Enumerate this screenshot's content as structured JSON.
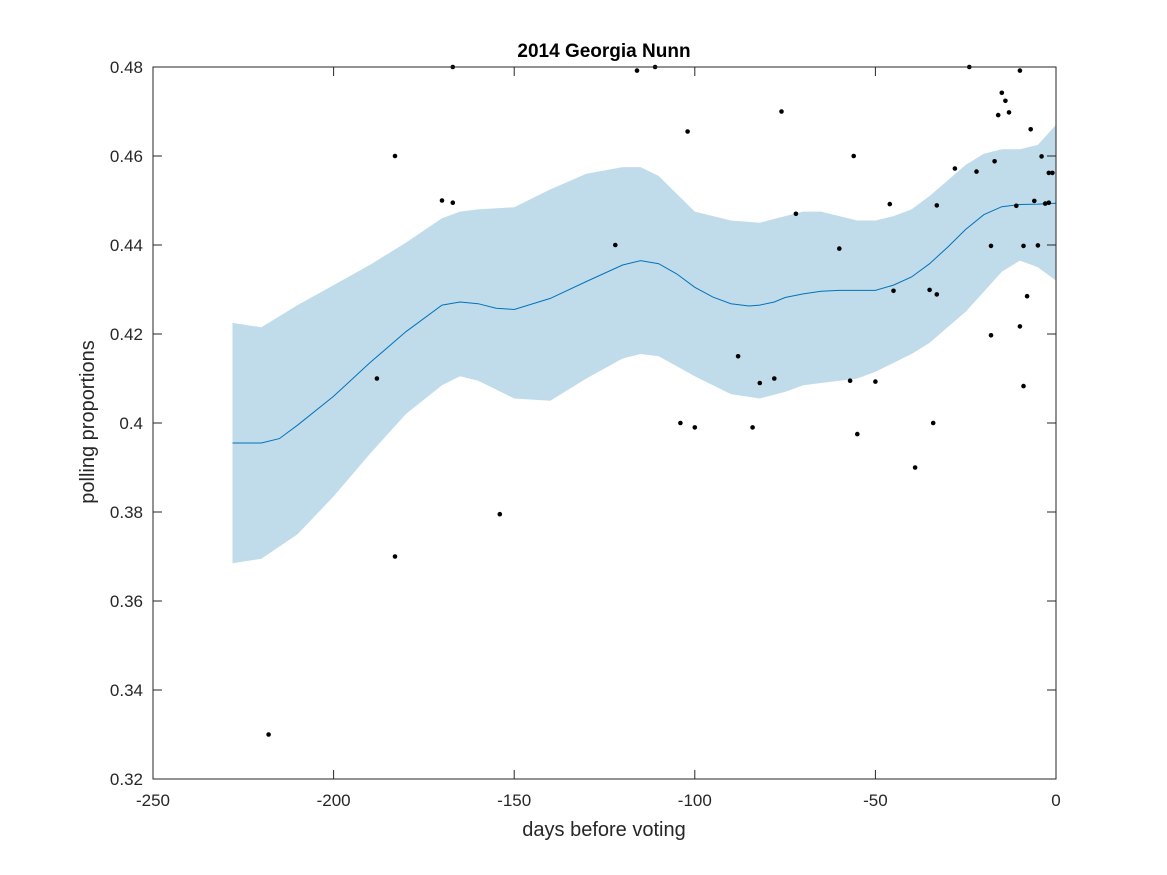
{
  "chart_data": {
    "type": "scatter",
    "title": "2014 Georgia Nunn",
    "xlabel": "days before voting",
    "ylabel": "polling proportions",
    "xlim": [
      -250,
      0
    ],
    "ylim": [
      0.32,
      0.48
    ],
    "xticks": [
      -250,
      -200,
      -150,
      -100,
      -50,
      0
    ],
    "yticks": [
      0.32,
      0.34,
      0.36,
      0.38,
      0.4,
      0.42,
      0.44,
      0.46,
      0.48
    ],
    "xtick_labels": [
      "-250",
      "-200",
      "-150",
      "-100",
      "-50",
      "0"
    ],
    "ytick_labels": [
      "0.32",
      "0.34",
      "0.36",
      "0.38",
      "0.4",
      "0.42",
      "0.44",
      "0.46",
      "0.48"
    ],
    "grid": false,
    "colors": {
      "band": "#c0dcea",
      "line": "#0072bd",
      "points": "#000000",
      "axes": "#262626"
    },
    "series": [
      {
        "kind": "band",
        "x": [
          -228,
          -220,
          -210,
          -200,
          -190,
          -180,
          -170,
          -165,
          -160,
          -150,
          -140,
          -130,
          -120,
          -115,
          -110,
          -100,
          -90,
          -82,
          -75,
          -70,
          -65,
          -60,
          -55,
          -50,
          -45,
          -40,
          -35,
          -30,
          -25,
          -20,
          -15,
          -10,
          -5,
          0
        ],
        "lower": [
          0.3685,
          0.3695,
          0.375,
          0.3835,
          0.393,
          0.402,
          0.4085,
          0.4105,
          0.4095,
          0.4055,
          0.405,
          0.41,
          0.4145,
          0.4155,
          0.415,
          0.4105,
          0.4065,
          0.4055,
          0.407,
          0.4085,
          0.409,
          0.4095,
          0.41,
          0.4115,
          0.4135,
          0.4155,
          0.418,
          0.4215,
          0.425,
          0.4295,
          0.434,
          0.4365,
          0.435,
          0.432
        ],
        "upper": [
          0.4225,
          0.4215,
          0.4265,
          0.431,
          0.4355,
          0.4405,
          0.446,
          0.4475,
          0.448,
          0.4485,
          0.4525,
          0.456,
          0.4575,
          0.4575,
          0.4555,
          0.4475,
          0.4455,
          0.445,
          0.4465,
          0.4475,
          0.4475,
          0.4465,
          0.4455,
          0.4455,
          0.4465,
          0.448,
          0.451,
          0.4545,
          0.458,
          0.4605,
          0.4615,
          0.4615,
          0.4625,
          0.467
        ]
      },
      {
        "kind": "line",
        "x": [
          -228,
          -220,
          -215,
          -210,
          -200,
          -190,
          -180,
          -170,
          -165,
          -160,
          -155,
          -150,
          -140,
          -130,
          -120,
          -115,
          -110,
          -105,
          -100,
          -95,
          -90,
          -85,
          -82,
          -78,
          -75,
          -70,
          -65,
          -60,
          -55,
          -50,
          -45,
          -40,
          -35,
          -30,
          -25,
          -20,
          -15,
          -10,
          -5,
          0
        ],
        "y": [
          0.3955,
          0.3955,
          0.3965,
          0.3995,
          0.406,
          0.4135,
          0.4205,
          0.4265,
          0.4272,
          0.4268,
          0.4258,
          0.4255,
          0.428,
          0.4318,
          0.4355,
          0.4365,
          0.4358,
          0.4335,
          0.4305,
          0.4283,
          0.4268,
          0.4263,
          0.4265,
          0.4272,
          0.4282,
          0.429,
          0.4296,
          0.4298,
          0.4298,
          0.4298,
          0.431,
          0.4328,
          0.4358,
          0.4395,
          0.4435,
          0.4468,
          0.4486,
          0.4491,
          0.4492,
          0.4494
        ]
      },
      {
        "kind": "points",
        "x": [
          -218,
          -188,
          -183,
          -183,
          -170,
          -167,
          -167,
          -154,
          -122,
          -116,
          -111,
          -104,
          -102,
          -100,
          -88,
          -84,
          -82,
          -78,
          -76,
          -72,
          -60,
          -57,
          -56,
          -55,
          -50,
          -46,
          -45,
          -39,
          -35,
          -34,
          -33,
          -33,
          -28,
          -24,
          -22,
          -18,
          -18,
          -17,
          -16,
          -15,
          -14,
          -13,
          -11,
          -10,
          -10,
          -9,
          -9,
          -8,
          -7,
          -6,
          -5,
          -4,
          -3,
          -2,
          -2,
          -1
        ],
        "y": [
          0.33,
          0.41,
          0.46,
          0.37,
          0.45,
          0.4495,
          0.48,
          0.3795,
          0.44,
          0.4792,
          0.48,
          0.4,
          0.4655,
          0.399,
          0.415,
          0.399,
          0.409,
          0.41,
          0.47,
          0.447,
          0.4392,
          0.4095,
          0.46,
          0.3975,
          0.4093,
          0.4492,
          0.4297,
          0.39,
          0.4299,
          0.4,
          0.4289,
          0.4489,
          0.4572,
          0.48,
          0.4565,
          0.4197,
          0.4398,
          0.4588,
          0.4692,
          0.4742,
          0.4724,
          0.4698,
          0.4488,
          0.4792,
          0.4217,
          0.4083,
          0.4398,
          0.4285,
          0.466,
          0.4499,
          0.4399,
          0.4599,
          0.4493,
          0.4562,
          0.4495,
          0.4562
        ]
      }
    ]
  }
}
